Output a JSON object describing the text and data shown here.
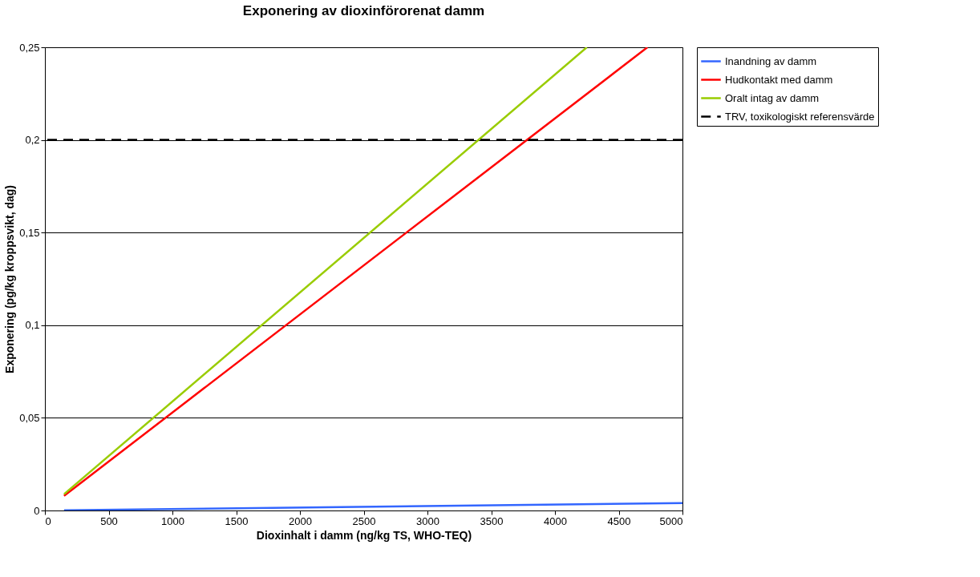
{
  "chart_data": {
    "type": "line",
    "title": "Exponering av dioxinförorenat damm",
    "xlabel": "Dioxinhalt i damm (ng/kg TS, WHO-TEQ)",
    "ylabel": "Exponering (pg/kg kroppsvikt, dag)",
    "series": [
      {
        "name": "Inandning av damm",
        "color": "#3366ff",
        "x": [
          150,
          5000
        ],
        "values": [
          0.0001,
          0.004
        ]
      },
      {
        "name": "Hudkontakt med damm",
        "color": "#ff0000",
        "x": [
          150,
          4725
        ],
        "values": [
          0.0079,
          0.25
        ]
      },
      {
        "name": "Oralt intag av damm",
        "color": "#99cc00",
        "x": [
          150,
          4250
        ],
        "values": [
          0.0088,
          0.25
        ]
      }
    ],
    "ref_lines": [
      {
        "axis": "y",
        "value": 0.2,
        "label": "TRV, toxikologiskt referensvärde",
        "color": "#000000",
        "line_style": "dashed"
      }
    ],
    "xlim": [
      0,
      5000
    ],
    "xticks": [
      0,
      500,
      1000,
      1500,
      2000,
      2500,
      3000,
      3500,
      4000,
      4500,
      5000
    ],
    "ylim": [
      0,
      0.25
    ],
    "yticks": [
      0,
      {
        "value": 0.05,
        "label": "0,05"
      },
      {
        "value": 0.1,
        "label": "0,1"
      },
      {
        "value": 0.15,
        "label": "0,15"
      },
      {
        "value": 0.2,
        "label": "0,2"
      },
      {
        "value": 0.25,
        "label": "0,25"
      }
    ],
    "grid": "y",
    "legend": "right",
    "marker": "none",
    "line_style": "solid"
  }
}
